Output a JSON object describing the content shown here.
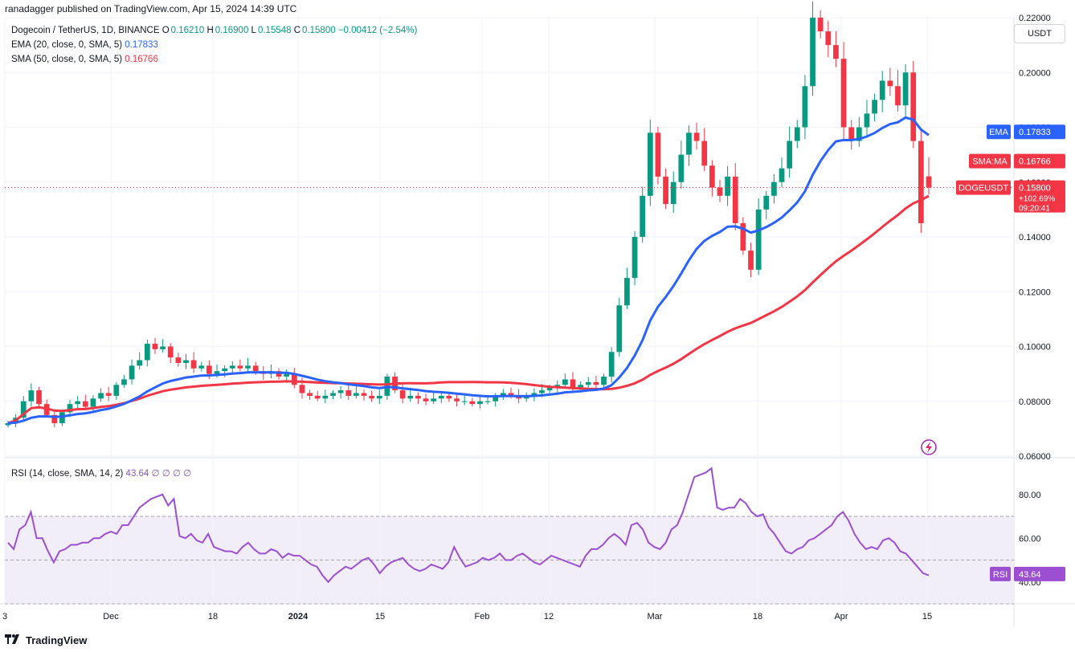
{
  "header": {
    "published": "ranadagger published on TradingView.com, Apr 15, 2024 14:39 UTC"
  },
  "legend": {
    "pair": "Dogecoin / TetherUS, 1D, BINANCE",
    "o_label": "O",
    "o": "0.16210",
    "h_label": "H",
    "h": "0.16900",
    "l_label": "L",
    "l": "0.15548",
    "c_label": "C",
    "c": "0.15800",
    "change": "−0.00412 (−2.54%)",
    "ema_label": "EMA (20, close, 0, SMA, 5)",
    "ema_value": "0.17833",
    "sma_label": "SMA (50, close, 0, SMA, 5)",
    "sma_value": "0.16766",
    "rsi_label": "RSI (14, close, SMA, 14, 2)",
    "rsi_value": "43.64",
    "rsi_extra": "∅ ∅ ∅ ∅"
  },
  "toolbar": {
    "unit": "USDT"
  },
  "badges": {
    "ema_name": "EMA",
    "ema_value": "0.17833",
    "sma_name": "SMA:MA",
    "sma_value": "0.16766",
    "symbol": "DOGEUSDT",
    "price": "0.15800",
    "pct": "+102.69%",
    "countdown": "09:20:41",
    "rsi_name": "RSI",
    "rsi_value": "43.64"
  },
  "footer": {
    "brand": "TradingView"
  },
  "colors": {
    "up": "#089981",
    "down": "#f23645",
    "ema": "#2962ff",
    "sma": "#f23645",
    "rsi": "#9c4fd1",
    "rsi_band": "#ede7f6",
    "grid": "#f0f3fa"
  },
  "chart_data": [
    {
      "type": "candlestick",
      "title": "Dogecoin / TetherUS, 1D, BINANCE",
      "x_tick_labels": [
        "3",
        "Dec",
        "18",
        "2024",
        "15",
        "Feb",
        "12",
        "Mar",
        "18",
        "Apr",
        "15"
      ],
      "y_tick_labels": [
        "0.22000",
        "0.20000",
        "0.18000",
        "0.16000",
        "0.14000",
        "0.12000",
        "0.10000",
        "0.08000",
        "0.06000"
      ],
      "ylim": [
        0.06,
        0.22
      ],
      "series": [
        {
          "name": "EMA (20, close, 0, SMA, 5)",
          "last": 0.17833
        },
        {
          "name": "SMA (50, close, 0, SMA, 5)",
          "last": 0.16766
        }
      ],
      "last_candle": {
        "open": 0.1621,
        "high": 0.169,
        "low": 0.15548,
        "close": 0.158
      },
      "closes_approx": [
        0.072,
        0.074,
        0.08,
        0.084,
        0.079,
        0.075,
        0.072,
        0.076,
        0.079,
        0.08,
        0.078,
        0.081,
        0.083,
        0.082,
        0.086,
        0.088,
        0.093,
        0.095,
        0.101,
        0.099,
        0.1,
        0.096,
        0.094,
        0.095,
        0.092,
        0.093,
        0.09,
        0.091,
        0.092,
        0.093,
        0.092,
        0.093,
        0.091,
        0.09,
        0.091,
        0.089,
        0.09,
        0.086,
        0.083,
        0.082,
        0.081,
        0.082,
        0.083,
        0.084,
        0.082,
        0.083,
        0.082,
        0.081,
        0.082,
        0.089,
        0.084,
        0.081,
        0.082,
        0.081,
        0.08,
        0.081,
        0.082,
        0.081,
        0.08,
        0.08,
        0.079,
        0.08,
        0.08,
        0.082,
        0.083,
        0.082,
        0.081,
        0.082,
        0.083,
        0.084,
        0.085,
        0.086,
        0.088,
        0.085,
        0.086,
        0.087,
        0.086,
        0.089,
        0.098,
        0.115,
        0.125,
        0.14,
        0.155,
        0.178,
        0.162,
        0.152,
        0.16,
        0.17,
        0.178,
        0.175,
        0.166,
        0.158,
        0.155,
        0.162,
        0.145,
        0.135,
        0.128,
        0.15,
        0.155,
        0.16,
        0.165,
        0.175,
        0.18,
        0.195,
        0.22,
        0.215,
        0.21,
        0.205,
        0.18,
        0.175,
        0.18,
        0.185,
        0.19,
        0.197,
        0.195,
        0.188,
        0.2,
        0.175,
        0.145,
        0.158
      ]
    },
    {
      "type": "line",
      "title": "RSI (14, close, SMA, 14, 2)",
      "y_tick_labels": [
        "80.00",
        "60.00",
        "40.00"
      ],
      "ylim": [
        30,
        95
      ],
      "band": [
        30,
        70
      ],
      "series": [
        {
          "name": "RSI",
          "last": 43.64
        }
      ],
      "values_approx": [
        58,
        55,
        64,
        66,
        72,
        60,
        60,
        54,
        49,
        54,
        55,
        57,
        57,
        58,
        58,
        60,
        60,
        62,
        63,
        62,
        66,
        66,
        70,
        74,
        76,
        78,
        79,
        80,
        75,
        78,
        61,
        60,
        62,
        59,
        58,
        62,
        56,
        55,
        54,
        54,
        53,
        56,
        58,
        55,
        53,
        53,
        55,
        54,
        51,
        53,
        52,
        52,
        50,
        48,
        47,
        43,
        40,
        43,
        45,
        47,
        46,
        48,
        50,
        51,
        48,
        44,
        47,
        49,
        50,
        51,
        48,
        46,
        45,
        46,
        48,
        47,
        46,
        49,
        56,
        51,
        47,
        48,
        49,
        51,
        50,
        51,
        53,
        50,
        50,
        52,
        53,
        51,
        49,
        48,
        50,
        52,
        51,
        50,
        49,
        48,
        47,
        52,
        55,
        55,
        57,
        60,
        62,
        60,
        57,
        66,
        67,
        64,
        58,
        56,
        55,
        58,
        64,
        66,
        72,
        80,
        88,
        89,
        90,
        92,
        74,
        73,
        74,
        74,
        78,
        76,
        72,
        70,
        71,
        65,
        62,
        58,
        54,
        53,
        55,
        56,
        59,
        60,
        62,
        64,
        66,
        70,
        72,
        68,
        62,
        58,
        55,
        56,
        55,
        59,
        60,
        58,
        54,
        53,
        50,
        47,
        44,
        43
      ]
    }
  ]
}
